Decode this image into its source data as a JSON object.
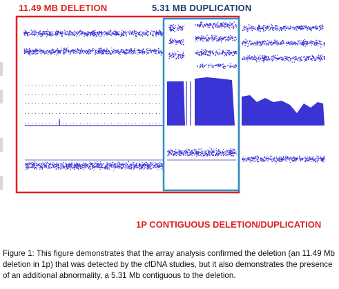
{
  "labels": {
    "deletion": "11.49 MB DELETION",
    "duplication": "5.31 MB DUPLICATION",
    "contiguous": "1P CONTIGUOUS DELETION/DUPLICATION"
  },
  "caption": "Figure 1: This figure demonstrates that the array analysis confirmed the deletion (an 11.49 Mb deletion in 1p) that was detected by the cfDNA studies, but it also demonstrates the presence of an additional abnormality, a 5.31 Mb contiguous to the deletion.",
  "colors": {
    "deletion_box": "#e02020",
    "duplication_box": "#2b8fc9",
    "plot_points": "#3a33d6",
    "dup_text": "#1f3c6e"
  }
}
